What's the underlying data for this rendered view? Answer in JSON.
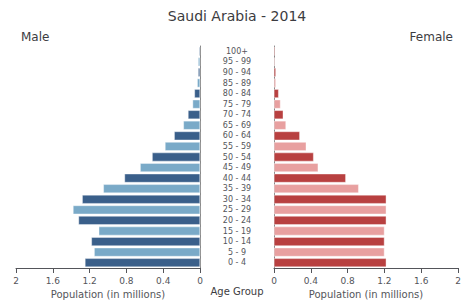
{
  "chart_data": {
    "type": "bar",
    "orientation": "horizontal",
    "title": "Saudi Arabia - 2014",
    "xlabel": "Population (in millions)",
    "ylabel": "Age Group",
    "categories": [
      "100+",
      "95 - 99",
      "90 - 94",
      "85 - 89",
      "80 - 84",
      "75 - 79",
      "70 - 74",
      "65 - 69",
      "60 - 64",
      "55 - 59",
      "50 - 54",
      "45 - 49",
      "40 - 44",
      "35 - 39",
      "30 - 34",
      "25 - 29",
      "20 - 24",
      "15 - 19",
      "10 - 14",
      "5 - 9",
      "0 - 4"
    ],
    "series": [
      {
        "name": "Male",
        "values": [
          0.01,
          0.02,
          0.02,
          0.03,
          0.06,
          0.08,
          0.13,
          0.18,
          0.28,
          0.38,
          0.52,
          0.65,
          0.82,
          1.05,
          1.28,
          1.38,
          1.32,
          1.1,
          1.18,
          1.15,
          1.25
        ],
        "colors": [
          "#3a5f8a",
          "#7aaac8",
          "#3a5f8a",
          "#7aaac8",
          "#3a5f8a",
          "#7aaac8",
          "#3a5f8a",
          "#7aaac8",
          "#3a5f8a",
          "#7aaac8",
          "#3a5f8a",
          "#7aaac8",
          "#3a5f8a",
          "#7aaac8",
          "#3a5f8a",
          "#7aaac8",
          "#3a5f8a",
          "#7aaac8",
          "#3a5f8a",
          "#7aaac8",
          "#3a5f8a"
        ]
      },
      {
        "name": "Female",
        "values": [
          0.01,
          0.01,
          0.02,
          0.02,
          0.05,
          0.07,
          0.1,
          0.13,
          0.28,
          0.35,
          0.43,
          0.48,
          0.78,
          0.92,
          1.22,
          1.22,
          1.22,
          1.2,
          1.2,
          1.2,
          1.22
        ],
        "colors": [
          "#b84040",
          "#e8a0a0",
          "#b84040",
          "#e8a0a0",
          "#b84040",
          "#e8a0a0",
          "#b84040",
          "#e8a0a0",
          "#b84040",
          "#e8a0a0",
          "#b84040",
          "#e8a0a0",
          "#b84040",
          "#e8a0a0",
          "#b84040",
          "#e8a0a0",
          "#b84040",
          "#e8a0a0",
          "#b84040",
          "#e8a0a0",
          "#b84040"
        ]
      }
    ],
    "xlim": [
      0,
      2.0
    ],
    "xticks": [
      0,
      0.4,
      0.8,
      1.2,
      1.6,
      2.0
    ],
    "grid": false
  }
}
